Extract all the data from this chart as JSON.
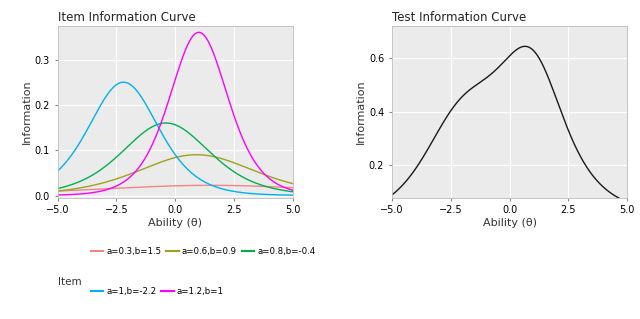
{
  "title_left": "Item Information Curve",
  "title_right": "Test Information Curve",
  "xlabel": "Ability (θ)",
  "ylabel": "Information",
  "xlim": [
    -5.0,
    5.0
  ],
  "xticks": [
    -5.0,
    -2.5,
    0.0,
    2.5,
    5.0
  ],
  "items": [
    {
      "a": 0.3,
      "b": 1.5,
      "color": "#F28585",
      "label": "a=0.3,b=1.5"
    },
    {
      "a": 0.6,
      "b": 0.9,
      "color": "#A0A020",
      "label": "a=0.6,b=0.9"
    },
    {
      "a": 0.8,
      "b": -0.4,
      "color": "#00B050",
      "label": "a=0.8,b=-0.4"
    },
    {
      "a": 1.0,
      "b": -2.2,
      "color": "#00B0F0",
      "label": "a=1,b=-2.2"
    },
    {
      "a": 1.2,
      "b": 1.0,
      "color": "#FF00FF",
      "label": "a=1.2,b=1"
    }
  ],
  "legend_title": "Item",
  "plot_bg": "#EBEBEB",
  "fig_bg": "#FFFFFF",
  "grid_color": "#FFFFFF",
  "line_width": 1.0,
  "ylim_left": [
    -0.005,
    0.375
  ],
  "yticks_left": [
    0.0,
    0.1,
    0.2,
    0.3
  ],
  "ylim_right": [
    0.08,
    0.72
  ],
  "yticks_right": [
    0.2,
    0.4,
    0.6
  ]
}
